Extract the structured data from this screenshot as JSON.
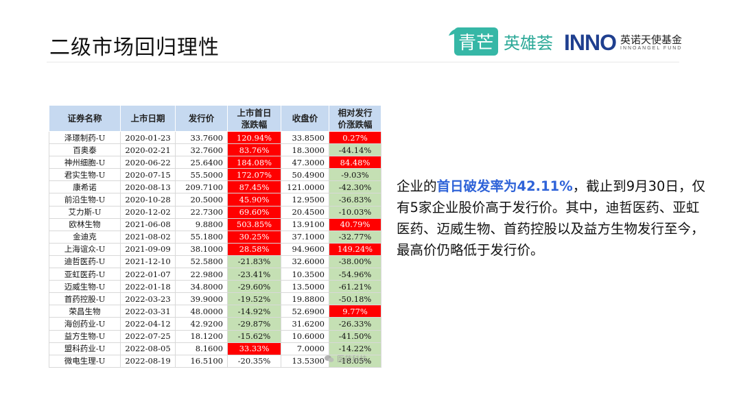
{
  "title": "二级市场回归理性",
  "logos": {
    "brand1_part1": "青芒",
    "brand1_part2": "英雄荟",
    "brand2_mark": "INNO",
    "brand2_cn": "英诺天使基金",
    "brand2_en": "INNOANGEL FUND",
    "brand1_color": "#36b7a6",
    "brand2_color": "#1f3f8f"
  },
  "table": {
    "headers": [
      "证券名称",
      "上市日期",
      "发行价",
      "上市首日涨跌幅",
      "收盘价",
      "相对发行价涨跌幅"
    ],
    "rows": [
      {
        "name": "泽璟制药-U",
        "date": "2020-01-23",
        "issue": "33.7600",
        "first": "120.94%",
        "first_c": "red",
        "close": "33.8500",
        "rel": "0.27%",
        "rel_c": "red"
      },
      {
        "name": "百奥泰",
        "date": "2020-02-21",
        "issue": "32.7600",
        "first": "83.76%",
        "first_c": "red",
        "close": "18.3000",
        "rel": "-44.14%",
        "rel_c": "green"
      },
      {
        "name": "神州细胞-U",
        "date": "2020-06-22",
        "issue": "25.6400",
        "first": "184.08%",
        "first_c": "red",
        "close": "47.3000",
        "rel": "84.48%",
        "rel_c": "red"
      },
      {
        "name": "君实生物-U",
        "date": "2020-07-15",
        "issue": "55.5000",
        "first": "172.07%",
        "first_c": "red",
        "close": "50.4900",
        "rel": "-9.03%",
        "rel_c": "green"
      },
      {
        "name": "康希诺",
        "date": "2020-08-13",
        "issue": "209.7100",
        "first": "87.45%",
        "first_c": "red",
        "close": "121.0000",
        "rel": "-42.30%",
        "rel_c": "green"
      },
      {
        "name": "前沿生物-U",
        "date": "2020-10-28",
        "issue": "20.5000",
        "first": "45.90%",
        "first_c": "red",
        "close": "12.9500",
        "rel": "-36.83%",
        "rel_c": "green"
      },
      {
        "name": "艾力斯-U",
        "date": "2020-12-02",
        "issue": "22.7300",
        "first": "69.60%",
        "first_c": "red",
        "close": "20.4500",
        "rel": "-10.03%",
        "rel_c": "green"
      },
      {
        "name": "欧林生物",
        "date": "2021-06-08",
        "issue": "9.8800",
        "first": "503.85%",
        "first_c": "red",
        "close": "13.9100",
        "rel": "40.79%",
        "rel_c": "red"
      },
      {
        "name": "金迪克",
        "date": "2021-08-02",
        "issue": "55.1800",
        "first": "30.25%",
        "first_c": "red",
        "close": "37.1000",
        "rel": "-32.77%",
        "rel_c": "green"
      },
      {
        "name": "上海谊众-U",
        "date": "2021-09-09",
        "issue": "38.1000",
        "first": "28.58%",
        "first_c": "red",
        "close": "94.9600",
        "rel": "149.24%",
        "rel_c": "red"
      },
      {
        "name": "迪哲医药-U",
        "date": "2021-12-10",
        "issue": "52.5800",
        "first": "-21.83%",
        "first_c": "green",
        "close": "32.6000",
        "rel": "-38.00%",
        "rel_c": "green"
      },
      {
        "name": "亚虹医药-U",
        "date": "2022-01-07",
        "issue": "22.9800",
        "first": "-23.41%",
        "first_c": "green",
        "close": "10.3500",
        "rel": "-54.96%",
        "rel_c": "green"
      },
      {
        "name": "迈威生物-U",
        "date": "2022-01-18",
        "issue": "34.8000",
        "first": "-29.60%",
        "first_c": "green",
        "close": "13.5000",
        "rel": "-61.21%",
        "rel_c": "green"
      },
      {
        "name": "首药控股-U",
        "date": "2022-03-23",
        "issue": "39.9000",
        "first": "-19.52%",
        "first_c": "green",
        "close": "19.8800",
        "rel": "-50.18%",
        "rel_c": "green"
      },
      {
        "name": "荣昌生物",
        "date": "2022-03-31",
        "issue": "48.0000",
        "first": "-14.92%",
        "first_c": "green",
        "close": "52.6900",
        "rel": "9.77%",
        "rel_c": "red"
      },
      {
        "name": "海创药业-U",
        "date": "2022-04-12",
        "issue": "42.9200",
        "first": "-29.87%",
        "first_c": "green",
        "close": "31.6200",
        "rel": "-26.33%",
        "rel_c": "green"
      },
      {
        "name": "益方生物-U",
        "date": "2022-07-25",
        "issue": "18.1200",
        "first": "-15.62%",
        "first_c": "green",
        "close": "10.6000",
        "rel": "-41.50%",
        "rel_c": "green"
      },
      {
        "name": "盟科药业-U",
        "date": "2022-08-05",
        "issue": "8.1600",
        "first": "33.33%",
        "first_c": "red",
        "close": "7.0000",
        "rel": "-14.22%",
        "rel_c": "green"
      },
      {
        "name": "微电生理-U",
        "date": "2022-08-19",
        "issue": "16.5100",
        "first": "-20.35%",
        "first_c": "plainwhite",
        "close": "13.5300",
        "rel": "-18.05%",
        "rel_c": "green"
      }
    ]
  },
  "watermark": "医药科技",
  "body": {
    "part1": "企业的",
    "highlight": "首日破发率为42.11%",
    "part2": "，截止到9月30日，仅有5家企业股价高于发行价。其中，迪哲医药、亚虹医药、迈威生物、首药控股以及益方生物发行至今，最高价仍略低于发行价。"
  },
  "colors": {
    "red": "#ff0000",
    "green": "#c5e0b4",
    "header": "#c6d9f0",
    "highlight": "#2f63d8"
  }
}
